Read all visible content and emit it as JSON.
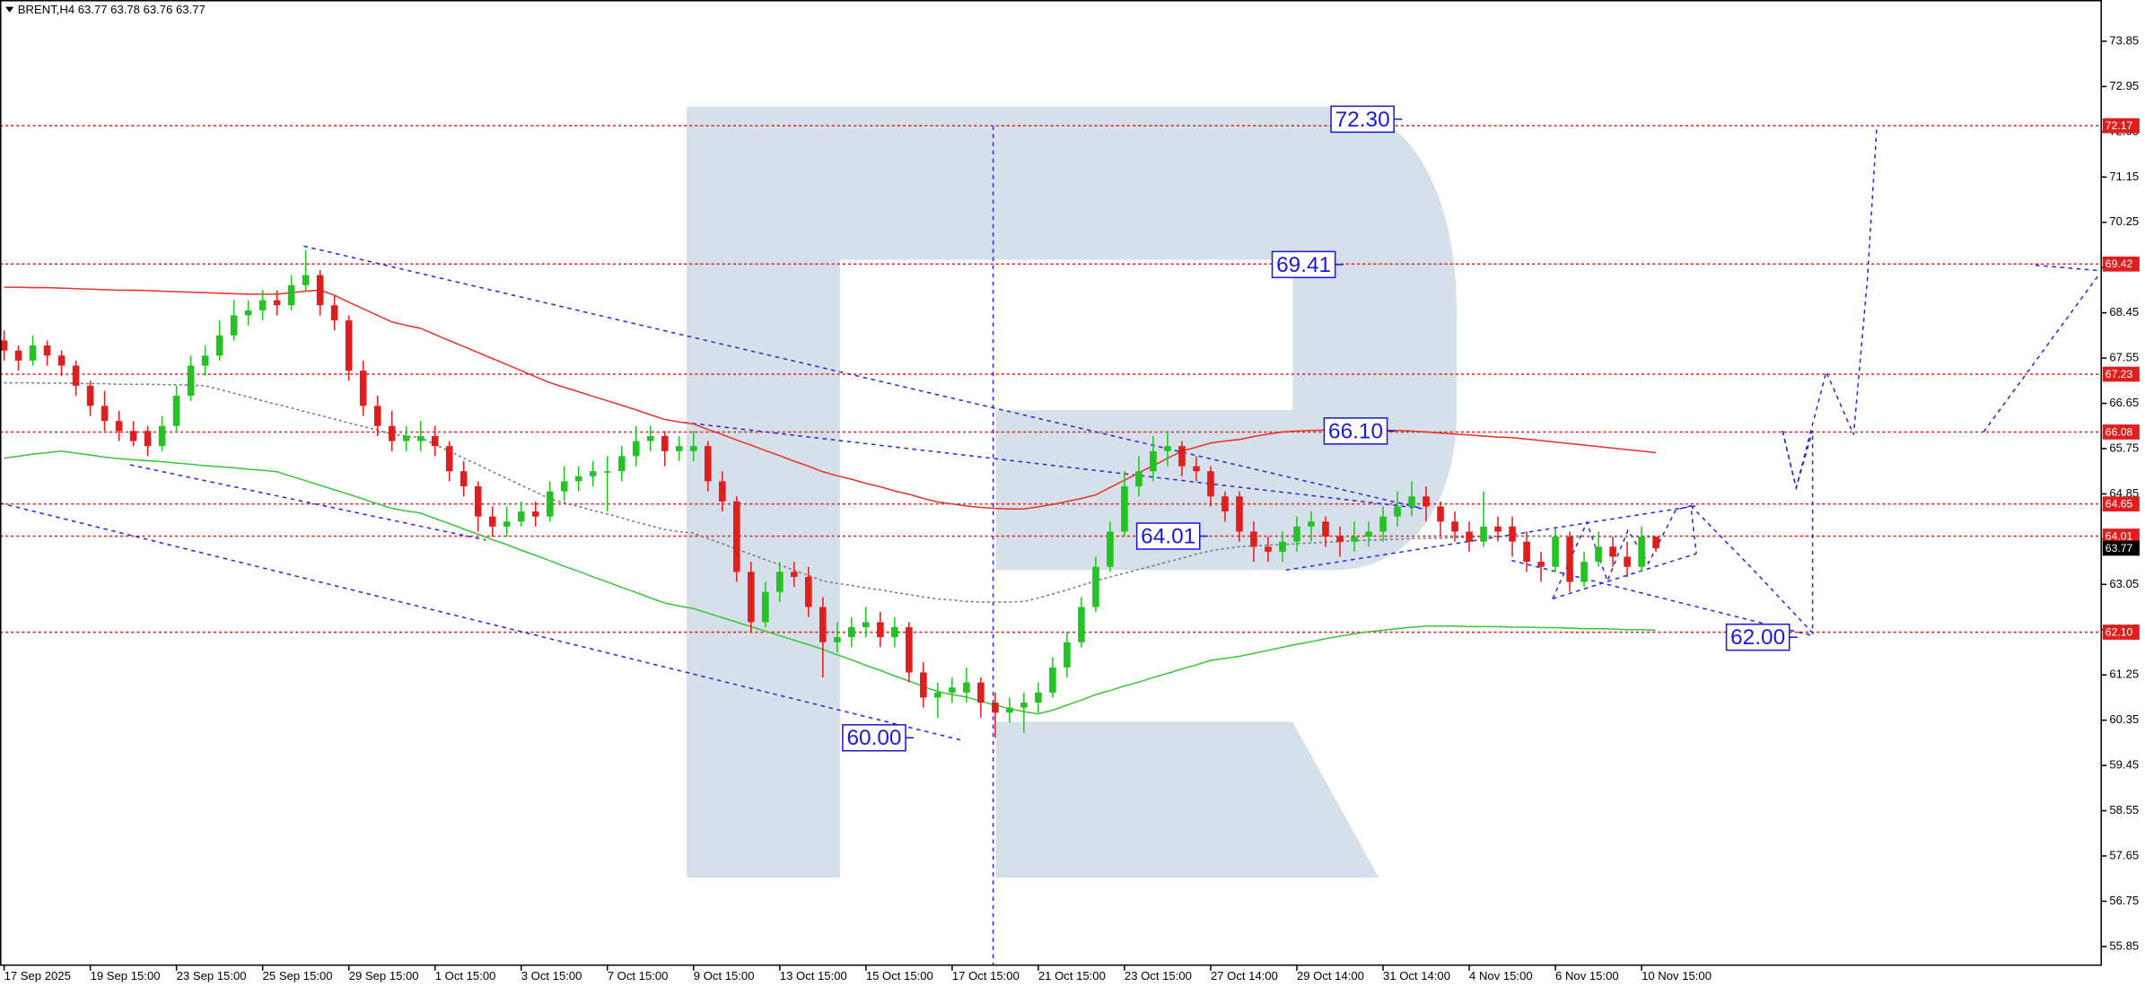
{
  "chart_data": {
    "type": "candlestick",
    "header": "BRENT,H4  63.77 63.78 63.76 63.77",
    "up_color": "#22c322",
    "down_color": "#e01e1e",
    "ylim": [
      55.48,
      74.67
    ],
    "yticks": [
      73.85,
      72.95,
      72.05,
      71.15,
      70.25,
      69.35,
      68.45,
      67.55,
      66.65,
      65.75,
      64.85,
      63.95,
      63.05,
      62.15,
      61.25,
      60.35,
      59.45,
      58.55,
      57.65,
      56.75,
      55.85
    ],
    "categories": [
      "17 Sep 2025",
      null,
      null,
      null,
      null,
      null,
      "19 Sep 15:00",
      null,
      null,
      null,
      null,
      null,
      "23 Sep 15:00",
      null,
      null,
      null,
      null,
      null,
      "25 Sep 15:00",
      null,
      null,
      null,
      null,
      null,
      "29 Sep 15:00",
      null,
      null,
      null,
      null,
      null,
      "1 Oct 15:00",
      null,
      null,
      null,
      null,
      null,
      "3 Oct 15:00",
      null,
      null,
      null,
      null,
      null,
      "7 Oct 15:00",
      null,
      null,
      null,
      null,
      null,
      "9 Oct 15:00",
      null,
      null,
      null,
      null,
      null,
      "13 Oct 15:00",
      null,
      null,
      null,
      null,
      null,
      "15 Oct 15:00",
      null,
      null,
      null,
      null,
      null,
      "17 Oct 15:00",
      null,
      null,
      null,
      null,
      null,
      "21 Oct 15:00",
      null,
      null,
      null,
      null,
      null,
      "23 Oct 15:00",
      null,
      null,
      null,
      null,
      null,
      "27 Oct 14:00",
      null,
      null,
      null,
      null,
      null,
      "29 Oct 14:00",
      null,
      null,
      null,
      null,
      null,
      "31 Oct 14:00",
      null,
      null,
      null,
      null,
      null,
      "4 Nov 15:00",
      null,
      null,
      null,
      null,
      null,
      "6 Nov 15:00",
      null,
      null,
      null,
      null,
      null,
      "10 Nov 15:00",
      null
    ],
    "candles": [
      [
        67.9,
        68.1,
        67.5,
        67.7
      ],
      [
        67.7,
        67.8,
        67.3,
        67.5
      ],
      [
        67.5,
        68.0,
        67.4,
        67.8
      ],
      [
        67.8,
        67.9,
        67.4,
        67.6
      ],
      [
        67.6,
        67.7,
        67.2,
        67.4
      ],
      [
        67.4,
        67.5,
        66.8,
        67.0
      ],
      [
        67.0,
        67.1,
        66.4,
        66.6
      ],
      [
        66.6,
        66.9,
        66.1,
        66.3
      ],
      [
        66.3,
        66.5,
        65.9,
        66.1
      ],
      [
        66.1,
        66.3,
        65.8,
        65.9
      ],
      [
        66.1,
        66.2,
        65.6,
        65.8
      ],
      [
        65.8,
        66.4,
        65.7,
        66.2
      ],
      [
        66.2,
        67.0,
        66.1,
        66.8
      ],
      [
        66.8,
        67.6,
        66.7,
        67.4
      ],
      [
        67.4,
        67.8,
        67.2,
        67.6
      ],
      [
        67.6,
        68.3,
        67.5,
        68.0
      ],
      [
        68.0,
        68.7,
        67.9,
        68.4
      ],
      [
        68.4,
        68.7,
        68.2,
        68.5
      ],
      [
        68.5,
        68.9,
        68.3,
        68.7
      ],
      [
        68.7,
        68.9,
        68.4,
        68.6
      ],
      [
        68.6,
        69.2,
        68.5,
        69.0
      ],
      [
        69.0,
        69.7,
        68.9,
        69.2
      ],
      [
        69.2,
        69.3,
        68.4,
        68.6
      ],
      [
        68.6,
        68.8,
        68.1,
        68.3
      ],
      [
        68.3,
        68.4,
        67.1,
        67.3
      ],
      [
        67.3,
        67.5,
        66.4,
        66.6
      ],
      [
        66.6,
        66.8,
        66.0,
        66.2
      ],
      [
        66.2,
        66.5,
        65.7,
        65.9
      ],
      [
        65.9,
        66.2,
        65.7,
        66.0
      ],
      [
        65.9,
        66.3,
        65.7,
        66.0
      ],
      [
        66.0,
        66.2,
        65.6,
        65.8
      ],
      [
        65.8,
        65.9,
        65.1,
        65.3
      ],
      [
        65.3,
        65.5,
        64.8,
        65.0
      ],
      [
        65.0,
        65.1,
        64.1,
        64.4
      ],
      [
        64.4,
        64.6,
        64.0,
        64.2
      ],
      [
        64.2,
        64.6,
        64.0,
        64.3
      ],
      [
        64.3,
        64.7,
        64.2,
        64.5
      ],
      [
        64.5,
        64.7,
        64.2,
        64.4
      ],
      [
        64.4,
        65.1,
        64.3,
        64.9
      ],
      [
        64.9,
        65.4,
        64.7,
        65.1
      ],
      [
        65.1,
        65.4,
        64.9,
        65.2
      ],
      [
        65.2,
        65.5,
        65.0,
        65.3
      ],
      [
        65.3,
        65.6,
        64.5,
        65.3
      ],
      [
        65.3,
        65.8,
        65.1,
        65.6
      ],
      [
        65.6,
        66.2,
        65.4,
        65.9
      ],
      [
        65.9,
        66.2,
        65.7,
        66.0
      ],
      [
        66.0,
        66.1,
        65.4,
        65.7
      ],
      [
        65.7,
        66.0,
        65.5,
        65.8
      ],
      [
        65.7,
        66.1,
        65.5,
        65.8
      ],
      [
        65.8,
        65.9,
        64.9,
        65.1
      ],
      [
        65.1,
        65.3,
        64.5,
        64.7
      ],
      [
        64.7,
        64.8,
        63.1,
        63.3
      ],
      [
        63.3,
        63.5,
        62.1,
        62.3
      ],
      [
        62.3,
        63.1,
        62.2,
        62.9
      ],
      [
        62.9,
        63.5,
        62.7,
        63.3
      ],
      [
        63.3,
        63.5,
        63.0,
        63.2
      ],
      [
        63.2,
        63.4,
        62.4,
        62.6
      ],
      [
        62.6,
        62.8,
        61.2,
        61.9
      ],
      [
        61.9,
        62.3,
        61.7,
        62.0
      ],
      [
        62.0,
        62.4,
        61.8,
        62.2
      ],
      [
        62.2,
        62.6,
        62.0,
        62.3
      ],
      [
        62.3,
        62.5,
        61.8,
        62.0
      ],
      [
        62.0,
        62.4,
        61.8,
        62.2
      ],
      [
        62.2,
        62.3,
        61.1,
        61.3
      ],
      [
        61.3,
        61.5,
        60.6,
        60.8
      ],
      [
        60.8,
        61.1,
        60.4,
        60.9
      ],
      [
        60.9,
        61.2,
        60.7,
        61.0
      ],
      [
        60.9,
        61.4,
        60.7,
        61.1
      ],
      [
        61.1,
        61.2,
        60.4,
        60.7
      ],
      [
        60.7,
        60.9,
        60.0,
        60.5
      ],
      [
        60.5,
        60.8,
        60.3,
        60.6
      ],
      [
        60.6,
        60.9,
        60.1,
        60.7
      ],
      [
        60.7,
        61.1,
        60.5,
        60.9
      ],
      [
        60.9,
        61.6,
        60.8,
        61.4
      ],
      [
        61.4,
        62.1,
        61.2,
        61.9
      ],
      [
        61.9,
        62.8,
        61.8,
        62.6
      ],
      [
        62.6,
        63.6,
        62.5,
        63.4
      ],
      [
        63.4,
        64.3,
        63.3,
        64.1
      ],
      [
        64.1,
        65.3,
        64.0,
        65.0
      ],
      [
        65.0,
        65.6,
        64.8,
        65.3
      ],
      [
        65.3,
        66.0,
        65.1,
        65.7
      ],
      [
        65.7,
        66.1,
        65.4,
        65.8
      ],
      [
        65.8,
        65.9,
        65.2,
        65.4
      ],
      [
        65.4,
        65.6,
        65.1,
        65.3
      ],
      [
        65.3,
        65.4,
        64.6,
        64.8
      ],
      [
        64.8,
        64.9,
        64.3,
        64.5
      ],
      [
        64.8,
        64.9,
        63.9,
        64.1
      ],
      [
        64.1,
        64.3,
        63.5,
        63.8
      ],
      [
        63.8,
        64.0,
        63.5,
        63.7
      ],
      [
        63.7,
        64.1,
        63.5,
        63.9
      ],
      [
        63.9,
        64.4,
        63.7,
        64.2
      ],
      [
        64.2,
        64.5,
        63.9,
        64.3
      ],
      [
        64.3,
        64.4,
        63.8,
        64.0
      ],
      [
        64.0,
        64.2,
        63.6,
        63.9
      ],
      [
        63.9,
        64.3,
        63.7,
        64.0
      ],
      [
        64.0,
        64.3,
        63.8,
        64.1
      ],
      [
        64.1,
        64.6,
        63.9,
        64.4
      ],
      [
        64.4,
        64.9,
        64.2,
        64.6
      ],
      [
        64.6,
        65.1,
        64.4,
        64.8
      ],
      [
        64.8,
        65.0,
        64.3,
        64.6
      ],
      [
        64.6,
        64.7,
        64.0,
        64.3
      ],
      [
        64.3,
        64.5,
        63.9,
        64.1
      ],
      [
        64.1,
        64.3,
        63.7,
        63.9
      ],
      [
        63.9,
        64.9,
        63.8,
        64.2
      ],
      [
        64.2,
        64.4,
        63.9,
        64.1
      ],
      [
        64.2,
        64.4,
        63.6,
        63.9
      ],
      [
        63.9,
        64.1,
        63.3,
        63.5
      ],
      [
        63.5,
        63.7,
        63.1,
        63.4
      ],
      [
        63.4,
        64.2,
        63.3,
        64.0
      ],
      [
        64.0,
        64.1,
        62.9,
        63.1
      ],
      [
        63.1,
        63.7,
        63.0,
        63.5
      ],
      [
        63.5,
        64.1,
        63.4,
        63.8
      ],
      [
        63.8,
        64.0,
        63.4,
        63.6
      ],
      [
        63.6,
        63.9,
        63.2,
        63.4
      ],
      [
        63.4,
        64.2,
        63.3,
        64.0
      ],
      [
        64.0,
        64.0,
        63.7,
        63.77
      ]
    ],
    "series": [
      {
        "color": "#e8322a",
        "style": "solid",
        "values": [
          68.96,
          68.96,
          68.95,
          68.95,
          68.94,
          68.93,
          68.92,
          68.91,
          68.9,
          68.9,
          68.89,
          68.88,
          68.87,
          68.86,
          68.85,
          68.84,
          68.83,
          68.82,
          68.82,
          68.82,
          68.85,
          68.88,
          68.9,
          68.8,
          68.66,
          68.53,
          68.4,
          68.27,
          68.2,
          68.14,
          68.02,
          67.9,
          67.78,
          67.66,
          67.54,
          67.42,
          67.3,
          67.18,
          67.06,
          66.97,
          66.88,
          66.79,
          66.7,
          66.61,
          66.52,
          66.42,
          66.33,
          66.28,
          66.24,
          66.13,
          66.03,
          65.92,
          65.82,
          65.71,
          65.61,
          65.5,
          65.4,
          65.29,
          65.21,
          65.14,
          65.06,
          64.99,
          64.91,
          64.84,
          64.76,
          64.69,
          64.65,
          64.61,
          64.58,
          64.56,
          64.55,
          64.55,
          64.59,
          64.64,
          64.7,
          64.76,
          64.83,
          64.98,
          65.12,
          65.27,
          65.41,
          65.56,
          65.7,
          65.78,
          65.86,
          65.9,
          65.93,
          65.99,
          66.04,
          66.08,
          66.1,
          66.11,
          66.12,
          66.12,
          66.12,
          66.12,
          66.11,
          66.11,
          66.1,
          66.08,
          66.06,
          66.04,
          66.02,
          66.0,
          65.98,
          65.97,
          65.94,
          65.91,
          65.88,
          65.85,
          65.82,
          65.79,
          65.76,
          65.73,
          65.7,
          65.67
        ]
      },
      {
        "color": "#3cc43c",
        "style": "solid",
        "values": [
          65.56,
          65.6,
          65.64,
          65.67,
          65.7,
          65.66,
          65.62,
          65.58,
          65.55,
          65.53,
          65.51,
          65.49,
          65.46,
          65.44,
          65.41,
          65.39,
          65.37,
          65.34,
          65.32,
          65.29,
          65.2,
          65.11,
          65.02,
          64.93,
          64.84,
          64.75,
          64.65,
          64.56,
          64.51,
          64.47,
          64.36,
          64.26,
          64.15,
          64.05,
          63.94,
          63.84,
          63.73,
          63.63,
          63.52,
          63.41,
          63.31,
          63.2,
          63.1,
          62.99,
          62.89,
          62.78,
          62.68,
          62.62,
          62.57,
          62.48,
          62.39,
          62.3,
          62.21,
          62.12,
          62.03,
          61.94,
          61.85,
          61.76,
          61.65,
          61.55,
          61.44,
          61.34,
          61.23,
          61.13,
          61.02,
          60.92,
          60.86,
          60.81,
          60.73,
          60.65,
          60.58,
          60.52,
          60.48,
          60.55,
          60.65,
          60.75,
          60.86,
          60.94,
          61.03,
          61.11,
          61.2,
          61.28,
          61.37,
          61.45,
          61.54,
          61.58,
          61.62,
          61.68,
          61.74,
          61.8,
          61.86,
          61.91,
          61.97,
          62.02,
          62.07,
          62.11,
          62.14,
          62.17,
          62.2,
          62.22,
          62.22,
          62.22,
          62.21,
          62.21,
          62.21,
          62.2,
          62.2,
          62.19,
          62.19,
          62.18,
          62.17,
          62.17,
          62.16,
          62.15,
          62.15,
          62.14
        ]
      },
      {
        "color": "#7a7a7a",
        "style": "dotted",
        "values": [
          67.06,
          67.06,
          67.06,
          67.05,
          67.05,
          67.05,
          67.04,
          67.04,
          67.03,
          67.03,
          67.03,
          67.02,
          67.02,
          67.01,
          67.0,
          66.93,
          66.85,
          66.78,
          66.7,
          66.63,
          66.56,
          66.48,
          66.41,
          66.34,
          66.26,
          66.19,
          66.12,
          66.04,
          66.0,
          65.97,
          65.83,
          65.7,
          65.56,
          65.43,
          65.29,
          65.16,
          65.02,
          64.89,
          64.75,
          64.67,
          64.6,
          64.52,
          64.45,
          64.37,
          64.29,
          64.22,
          64.14,
          64.1,
          64.07,
          63.96,
          63.86,
          63.75,
          63.65,
          63.54,
          63.44,
          63.33,
          63.23,
          63.12,
          63.07,
          63.03,
          62.98,
          62.94,
          62.89,
          62.85,
          62.8,
          62.76,
          62.74,
          62.71,
          62.7,
          62.7,
          62.7,
          62.71,
          62.78,
          62.86,
          62.94,
          63.03,
          63.12,
          63.2,
          63.27,
          63.35,
          63.42,
          63.5,
          63.57,
          63.65,
          63.72,
          63.76,
          63.8,
          63.81,
          63.83,
          63.84,
          63.86,
          63.87,
          63.89,
          63.9,
          63.92,
          63.93,
          63.94,
          63.95,
          63.96,
          63.97,
          63.97,
          63.98,
          63.99,
          64.0,
          64.0,
          64.01,
          64.01,
          64.01,
          64.01,
          64.01,
          64.0,
          64.0,
          64.0,
          64.0,
          63.99,
          63.99
        ]
      }
    ],
    "level_color": "#e01e1e",
    "levels": [
      72.17,
      69.42,
      67.23,
      66.08,
      64.65,
      64.01,
      {
        "value": 62.1,
        "label": "62.10"
      }
    ],
    "last_price": 63.77,
    "annotations": [
      {
        "value": 72.3,
        "label": "72.30"
      },
      {
        "value": 69.41,
        "label": "69.41"
      },
      {
        "value": 66.1,
        "label": "66.10"
      },
      {
        "value": 64.01,
        "label": "64.01"
      },
      {
        "value": 62.0,
        "label": "62.00"
      },
      {
        "value": 60.0,
        "label": "60.00"
      }
    ]
  }
}
